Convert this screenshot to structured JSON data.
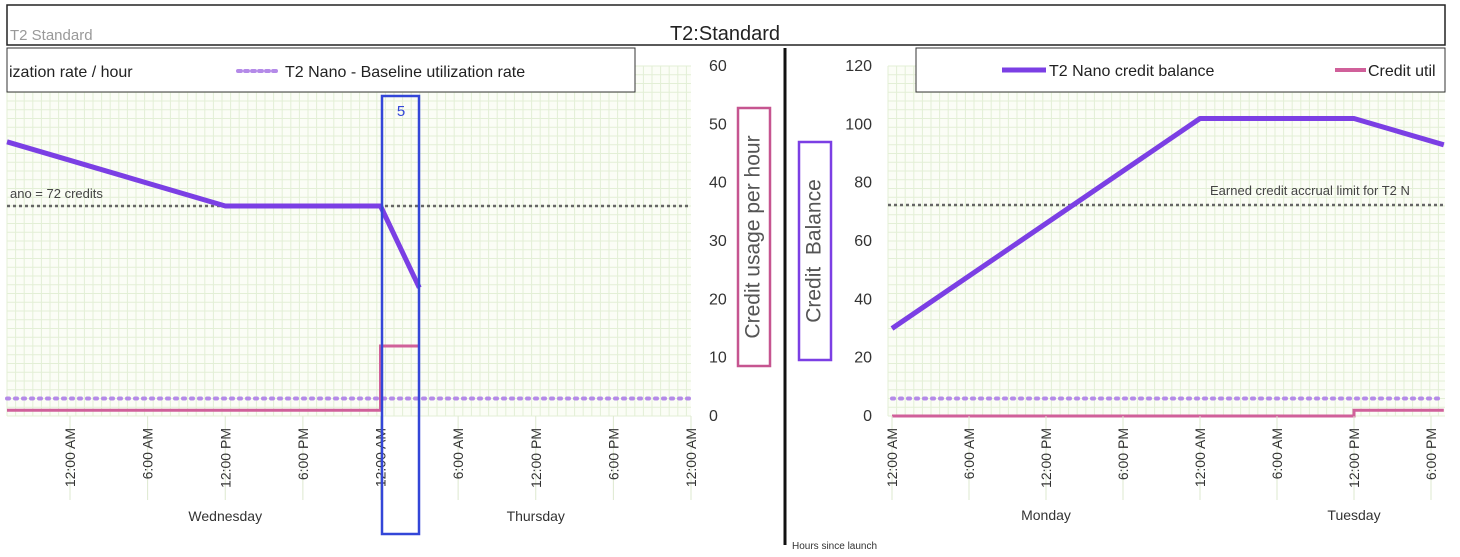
{
  "title": "T2:Standard",
  "left_chart_label": "T2 Standard",
  "left_legend": {
    "item1": "ization rate / hour",
    "item2": "T2 Nano - Baseline utilization rate"
  },
  "left_annotation": "ano = 72 credits",
  "left_ylabel": "Credit usage per hour",
  "highlight_label": "5",
  "right_ylabel": "Credit  Balance",
  "right_legend": {
    "item1": "T2 Nano credit balance",
    "item2": "Credit util"
  },
  "right_annotation": "Earned credit accrual limit for T2 N",
  "bottom_caption": "Hours since launch",
  "colors": {
    "purple": "#7b3fe4",
    "pink": "#d0609a",
    "dotted": "#b48ae8",
    "grid": "#e3efd6",
    "highlight": "#3346d8"
  },
  "chart_data": [
    {
      "type": "line",
      "title": "",
      "ylabel": "Credit usage per hour",
      "ylim": [
        0,
        60
      ],
      "yticks": [
        0,
        10,
        20,
        30,
        40,
        50,
        60
      ],
      "x_tick_labels": [
        "12:00 AM",
        "6:00 AM",
        "12:00 PM",
        "6:00 PM",
        "12:00 AM",
        "6:00 AM",
        "12:00 PM",
        "6:00 PM",
        "12:00 AM"
      ],
      "x_day_labels": [
        "Wednesday",
        "Thursday"
      ],
      "grid": true,
      "legend_position": "top",
      "series": [
        {
          "name": "T2 Nano - Baseline utilization rate",
          "style": "dotted",
          "x_hours": [
            -6,
            48
          ],
          "y": [
            3,
            3
          ]
        },
        {
          "style": "solid",
          "x_hours": [
            -6,
            12,
            24,
            24,
            27
          ],
          "y": [
            1,
            1,
            1,
            12,
            12
          ]
        }
      ],
      "secondary_axis": {
        "ylim": [
          0,
          120
        ],
        "reference_line": {
          "label": "ano = 72 credits",
          "value": 72
        },
        "series": [
          {
            "style": "solid",
            "x_hours": [
              -6,
              12,
              24,
              27
            ],
            "y": [
              94,
              72,
              72,
              44
            ]
          }
        ]
      },
      "highlight": {
        "label": "5",
        "x_hours": [
          24,
          27
        ]
      }
    },
    {
      "type": "line",
      "title": "",
      "ylabel": "Credit  Balance",
      "ylim": [
        0,
        120
      ],
      "yticks": [
        0,
        20,
        40,
        60,
        80,
        100,
        120
      ],
      "x_tick_labels": [
        "12:00 AM",
        "6:00 AM",
        "12:00 PM",
        "6:00 PM",
        "12:00 AM",
        "6:00 AM",
        "12:00 PM",
        "6:00 PM"
      ],
      "x_day_labels": [
        "Monday",
        "Tuesday"
      ],
      "grid": true,
      "legend_position": "top",
      "reference_line": {
        "label": "Earned credit accrual limit for T2 N",
        "value": 72
      },
      "series": [
        {
          "name": "T2 Nano credit balance",
          "style": "solid",
          "x_hours": [
            0,
            24,
            36,
            43
          ],
          "y": [
            30,
            102,
            102,
            93
          ]
        },
        {
          "name": "Credit util",
          "style": "solid",
          "x_hours": [
            0,
            36,
            36,
            43
          ],
          "y": [
            0,
            0,
            2,
            2
          ]
        },
        {
          "style": "dotted",
          "x_hours": [
            0,
            43
          ],
          "y": [
            6,
            6
          ]
        }
      ]
    }
  ]
}
